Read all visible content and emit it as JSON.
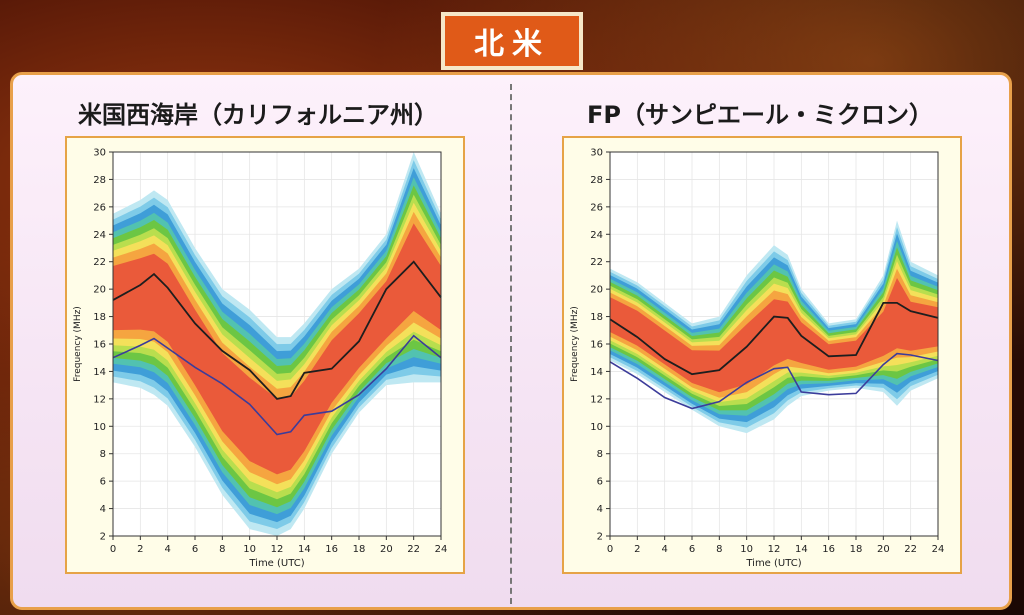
{
  "region": "北米",
  "charts": [
    {
      "id": "left",
      "title": "米国西海岸（カリフォルニア州）",
      "type": "contour",
      "xlabel": "Time (UTC)",
      "ylabel": "Frequency (MHz)",
      "xlim": [
        0,
        24
      ],
      "ylim": [
        2,
        30
      ],
      "xticks": [
        0,
        2,
        4,
        6,
        8,
        10,
        12,
        14,
        16,
        18,
        20,
        22,
        24
      ],
      "yticks": [
        2,
        4,
        6,
        8,
        10,
        12,
        14,
        16,
        18,
        20,
        22,
        24,
        26,
        28,
        30
      ],
      "time": [
        0,
        2,
        3,
        4,
        6,
        8,
        10,
        12,
        13,
        14,
        16,
        18,
        20,
        22,
        24
      ],
      "upper_mhz": [
        25.5,
        26.5,
        27.2,
        26.5,
        23,
        20,
        18.5,
        16.5,
        16.5,
        17.5,
        20,
        21.5,
        24,
        30,
        25.5
      ],
      "lower_mhz": [
        13.2,
        12.8,
        12.3,
        11.5,
        8.5,
        5,
        2.5,
        2,
        2.5,
        4,
        8,
        11,
        13,
        13.2,
        13.2
      ],
      "black_line": [
        19.2,
        20.3,
        21.1,
        20.1,
        17.5,
        15.5,
        14.1,
        12,
        12.2,
        13.9,
        14.2,
        16.2,
        20,
        22,
        19.4
      ],
      "blue_line": [
        15,
        15.9,
        16.4,
        15.7,
        14.3,
        13.1,
        11.6,
        9.4,
        9.6,
        10.8,
        11.1,
        12.3,
        14.2,
        16.6,
        15
      ]
    },
    {
      "id": "right",
      "title": "FP（サンピエール・ミクロン）",
      "type": "contour",
      "xlabel": "Time (UTC)",
      "ylabel": "Frequency (MHz)",
      "xlim": [
        0,
        24
      ],
      "ylim": [
        2,
        30
      ],
      "xticks": [
        0,
        2,
        4,
        6,
        8,
        10,
        12,
        14,
        16,
        18,
        20,
        22,
        24
      ],
      "yticks": [
        2,
        4,
        6,
        8,
        10,
        12,
        14,
        16,
        18,
        20,
        22,
        24,
        26,
        28,
        30
      ],
      "time": [
        0,
        2,
        4,
        6,
        8,
        10,
        12,
        13,
        14,
        16,
        18,
        20,
        21,
        22,
        24
      ],
      "upper_mhz": [
        21.5,
        20.5,
        19,
        17.5,
        18,
        21,
        23.2,
        22.5,
        20,
        17.5,
        17.8,
        21,
        25,
        22,
        21
      ],
      "lower_mhz": [
        14.8,
        13.8,
        12.5,
        11.2,
        10,
        9.5,
        10.5,
        11.5,
        12.2,
        12.6,
        12.8,
        12.5,
        11.5,
        12.6,
        13.5
      ],
      "black_line": [
        17.8,
        16.5,
        14.9,
        13.8,
        14.1,
        15.8,
        18,
        17.9,
        16.6,
        15.1,
        15.2,
        19,
        19,
        18.4,
        17.9
      ],
      "blue_line": [
        14.7,
        13.5,
        12.1,
        11.3,
        11.8,
        13.2,
        14.2,
        14.3,
        12.5,
        12.3,
        12.4,
        14.5,
        15.3,
        15.2,
        14.8
      ]
    }
  ],
  "colors": {
    "band_outer": "#bfe8f2",
    "band_light_blue": "#7ecbe8",
    "band_blue": "#3f9ed8",
    "band_teal": "#52c2b0",
    "band_green": "#6cc644",
    "band_yellowgreen": "#b9de4e",
    "band_yellow": "#f4e05a",
    "band_orange": "#f5a540",
    "band_red": "#ea5a3a",
    "black_line": "#1e1e1e",
    "blue_line": "#3c3c9a"
  }
}
